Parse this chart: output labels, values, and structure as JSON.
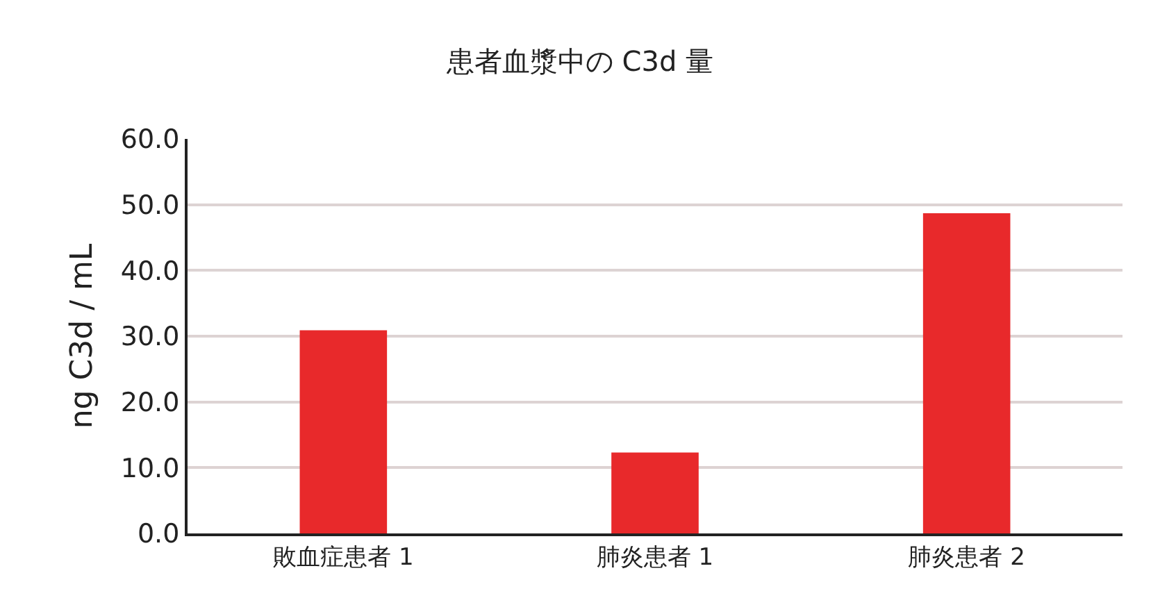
{
  "chart_data": {
    "type": "bar",
    "title": "患者血漿中の C3d 量",
    "ylabel": "ng C3d / mL",
    "categories": [
      "敗血症患者 1",
      "肺炎患者 1",
      "肺炎患者 2"
    ],
    "values": [
      30.9,
      12.3,
      48.7
    ],
    "color": "#e8292b",
    "ylim": [
      0,
      60
    ],
    "yticks": [
      {
        "value": 0,
        "label": "0.0"
      },
      {
        "value": 10,
        "label": "10.0"
      },
      {
        "value": 20,
        "label": "20.0"
      },
      {
        "value": 30,
        "label": "30.0"
      },
      {
        "value": 40,
        "label": "40.0"
      },
      {
        "value": 50,
        "label": "50.0"
      },
      {
        "value": 60,
        "label": "60.0"
      }
    ],
    "grid": "y"
  }
}
